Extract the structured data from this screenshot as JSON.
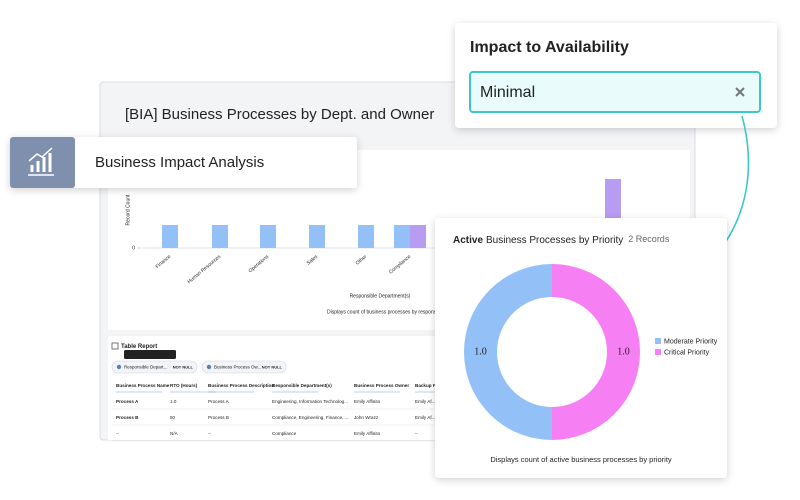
{
  "back_panel": {
    "title": "[BIA] Business Processes by Dept. and Owner"
  },
  "chart_data": [
    {
      "type": "bar",
      "y_label": "Record Count",
      "x_label": "Responsible Department(s)",
      "caption": "Displays count of business processes by responsible depa",
      "categories": [
        "Finance",
        "Human Resources",
        "Operations",
        "Sales",
        "Other",
        "Compliance",
        null
      ],
      "series": [
        {
          "color": "#93c0f7",
          "values": [
            1,
            1,
            1,
            1,
            1,
            1,
            null
          ]
        },
        {
          "color": "#b79cf2",
          "values": [
            null,
            null,
            null,
            null,
            null,
            1,
            3
          ]
        }
      ],
      "ylim": [
        0,
        3.2
      ],
      "yticks": [
        0
      ]
    },
    {
      "type": "pie",
      "title_prefix": "Active",
      "title": "Business Processes by Priority",
      "subtitle": "2 Records",
      "categories": [
        "Moderate Priority",
        "Critical Priority"
      ],
      "values": [
        1,
        1
      ],
      "value_labels": [
        "1.0",
        "1.0"
      ],
      "colors": [
        "#93c0f7",
        "#f77ff4"
      ],
      "caption": "Displays count of active business processes by priority"
    }
  ],
  "table_report": {
    "title": "Table Report",
    "tooltip": "Responsible Department(s)",
    "filters": [
      {
        "field": "Responsible Depart...",
        "condition": "NOT NULL"
      },
      {
        "field": "Business Process Ow...",
        "condition": "NOT NULL"
      }
    ],
    "columns": [
      "Business Process Name",
      "RTO (Hours)",
      "Business Process Description",
      "Responsible Department(s)",
      "Business Process Owner",
      "Backup Pr..."
    ],
    "rows": [
      [
        "Process A",
        "1.0",
        "Process A",
        "Engineering, Information Technolog...",
        "Emily Affinito",
        "Emily Af..."
      ],
      [
        "Process B",
        "50",
        "Process B",
        "Compliance, Engineering, Finance, ...",
        "John Wrazz",
        "Emily Af..."
      ],
      [
        "--",
        "N/A",
        "--",
        "Compliance",
        "Emily Affinito",
        "--"
      ]
    ]
  },
  "bia_card": {
    "label": "Business Impact Analysis"
  },
  "filter_card": {
    "title": "Impact to Availability",
    "value": "Minimal"
  }
}
